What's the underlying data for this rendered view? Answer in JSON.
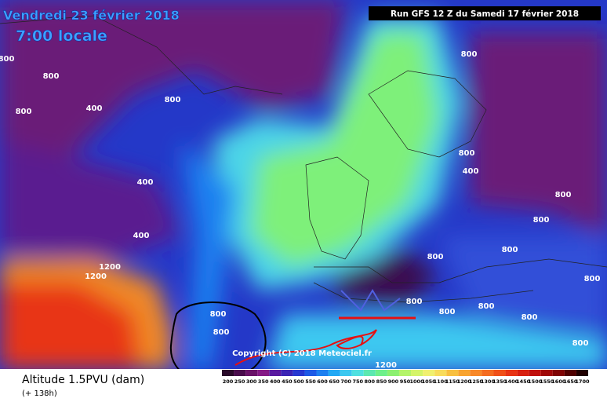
{
  "header": {
    "date": "Vendredi 23 février 2018",
    "time": "7:00 locale",
    "run": "Run GFS 12 Z du Samedi 17 février 2018"
  },
  "contour_labels": [
    "800",
    "800",
    "800",
    "800",
    "400",
    "800",
    "400",
    "400",
    "800",
    "800",
    "400",
    "800",
    "800",
    "800",
    "800",
    "800",
    "800",
    "800",
    "800",
    "800",
    "800",
    "800",
    "1200",
    "1200",
    "1200"
  ],
  "copyright": "Copyright (C) 2018 Meteociel.fr",
  "legend": {
    "title": "Altitude 1.5PVU (dam)",
    "subtitle": "(+ 138h)",
    "labels": [
      "200",
      "250",
      "300",
      "350",
      "400",
      "450",
      "500",
      "550",
      "600",
      "650",
      "700",
      "750",
      "800",
      "850",
      "900",
      "950",
      "1000",
      "1050",
      "1100",
      "1150",
      "1200",
      "1250",
      "1300",
      "1350",
      "1400",
      "1450",
      "1500",
      "1550",
      "1600",
      "1650",
      "1700"
    ],
    "colors": [
      "#2a0a2a",
      "#4a0c4c",
      "#6a1268",
      "#861a86",
      "#5a1aa0",
      "#3c24b4",
      "#2838d0",
      "#1e5ae6",
      "#1e80f0",
      "#22a8f4",
      "#3cc8f0",
      "#50e0e0",
      "#5ce8b0",
      "#6ef08a",
      "#8cf070",
      "#b4f46a",
      "#d4f46a",
      "#f0f070",
      "#f8dc5c",
      "#f8c040",
      "#f8a430",
      "#f88828",
      "#f46c20",
      "#f05018",
      "#e83414",
      "#d82010",
      "#c0100c",
      "#a00808",
      "#800404",
      "#500000",
      "#200000"
    ]
  }
}
